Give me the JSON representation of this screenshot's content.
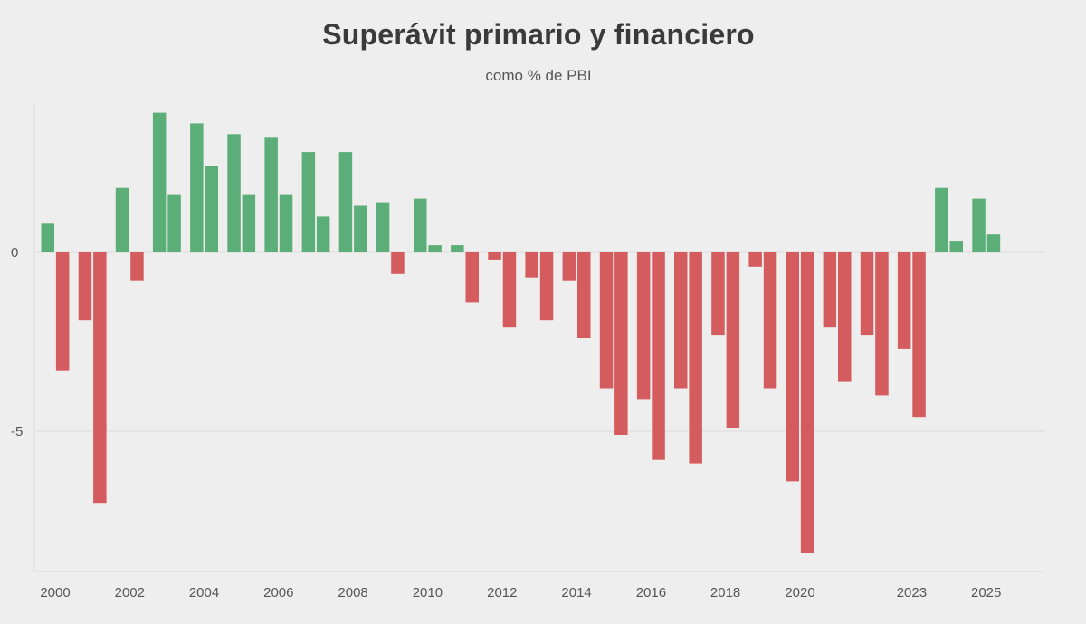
{
  "chart_data": {
    "type": "bar",
    "title": "Superávit primario y financiero",
    "subtitle": "como % de PBI",
    "xlabel": "",
    "ylabel": "",
    "ylim": [
      -8.8,
      4.2
    ],
    "yticks": [
      0,
      -5
    ],
    "ytick_labels": [
      "0",
      "-5"
    ],
    "grid": "horizontal",
    "colors": {
      "positive": "#5cae78",
      "negative": "#d45b5e"
    },
    "x_tick_labels": [
      "2000",
      "2002",
      "2004",
      "2006",
      "2008",
      "2010",
      "2012",
      "2014",
      "2016",
      "2018",
      "2020",
      "2023",
      "2025"
    ],
    "groups": [
      {
        "year": "2000",
        "primario": 0.8,
        "financiero": -3.3
      },
      {
        "year": "2001",
        "primario": -1.9,
        "financiero": -7.0
      },
      {
        "year": "2002",
        "primario": 1.8,
        "financiero": -0.8
      },
      {
        "year": "2003",
        "primario": 3.9,
        "financiero": 1.6
      },
      {
        "year": "2004",
        "primario": 3.6,
        "financiero": 2.4
      },
      {
        "year": "2005",
        "primario": 3.3,
        "financiero": 1.6
      },
      {
        "year": "2006",
        "primario": 3.2,
        "financiero": 1.6
      },
      {
        "year": "2007",
        "primario": 2.8,
        "financiero": 1.0
      },
      {
        "year": "2008",
        "primario": 2.8,
        "financiero": 1.3
      },
      {
        "year": "2009",
        "primario": 1.4,
        "financiero": -0.6
      },
      {
        "year": "2010",
        "primario": 1.5,
        "financiero": 0.2
      },
      {
        "year": "2011",
        "primario": 0.2,
        "financiero": -1.4
      },
      {
        "year": "2012",
        "primario": -0.2,
        "financiero": -2.1
      },
      {
        "year": "2013",
        "primario": -0.7,
        "financiero": -1.9
      },
      {
        "year": "2014",
        "primario": -0.8,
        "financiero": -2.4
      },
      {
        "year": "2015",
        "primario": -3.8,
        "financiero": -5.1
      },
      {
        "year": "2016",
        "primario": -4.1,
        "financiero": -5.8
      },
      {
        "year": "2017",
        "primario": -3.8,
        "financiero": -5.9
      },
      {
        "year": "2018",
        "primario": -2.3,
        "financiero": -4.9
      },
      {
        "year": "2019",
        "primario": -0.4,
        "financiero": -3.8
      },
      {
        "year": "2020",
        "primario": -6.4,
        "financiero": -8.4
      },
      {
        "year": "2021",
        "primario": -2.1,
        "financiero": -3.6
      },
      {
        "year": "2022",
        "primario": -2.3,
        "financiero": -4.0
      },
      {
        "year": "2023",
        "primario": -2.7,
        "financiero": -4.6
      },
      {
        "year": "2024",
        "primario": 1.8,
        "financiero": 0.3
      },
      {
        "year": "2025",
        "primario": 1.5,
        "financiero": 0.5
      }
    ]
  }
}
